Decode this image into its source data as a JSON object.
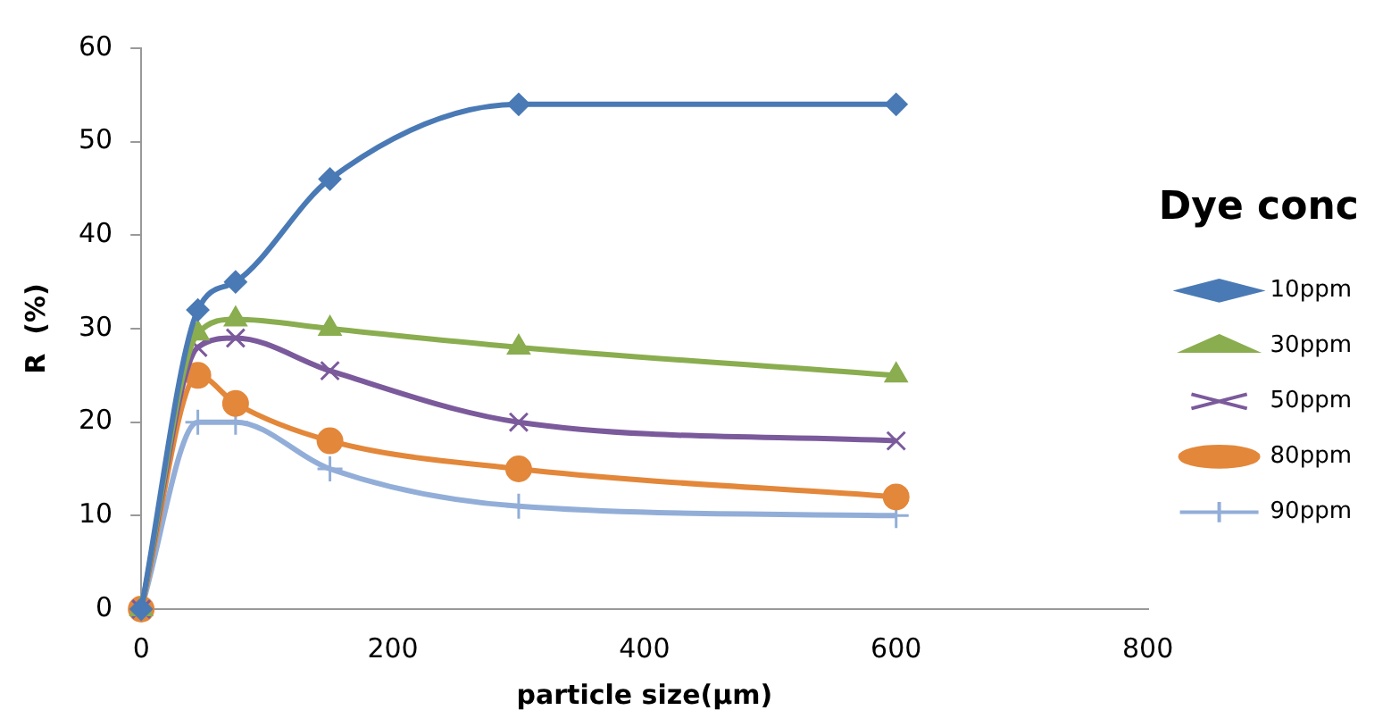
{
  "chart_data": {
    "type": "line",
    "xlabel": "particle size(µm)",
    "ylabel": "R  (%)",
    "legend_title": "Dye conc",
    "legend": "right",
    "grid": false,
    "x": [
      0,
      45,
      75,
      150,
      300,
      600
    ],
    "xlim": [
      0,
      800
    ],
    "xticks": [
      0,
      200,
      400,
      600,
      800
    ],
    "ylim": [
      0,
      60
    ],
    "yticks": [
      0,
      10,
      20,
      30,
      40,
      50,
      60
    ],
    "series": [
      {
        "name": "10ppm",
        "color": "#4a7ab5",
        "marker": "diamond",
        "values": [
          0,
          32,
          35,
          46,
          54,
          54
        ]
      },
      {
        "name": "30ppm",
        "color": "#8aad4f",
        "marker": "triangle",
        "values": [
          0,
          29.5,
          31,
          30,
          28,
          25
        ]
      },
      {
        "name": "50ppm",
        "color": "#7b5a9c",
        "marker": "cross",
        "values": [
          0,
          28,
          29,
          25.5,
          20,
          18
        ]
      },
      {
        "name": "80ppm",
        "color": "#e3873a",
        "marker": "circle",
        "values": [
          0,
          25,
          22,
          18,
          15,
          12
        ]
      },
      {
        "name": "90ppm",
        "color": "#92aed8",
        "marker": "plus",
        "values": [
          0,
          20,
          20,
          15,
          11,
          10
        ]
      }
    ]
  }
}
